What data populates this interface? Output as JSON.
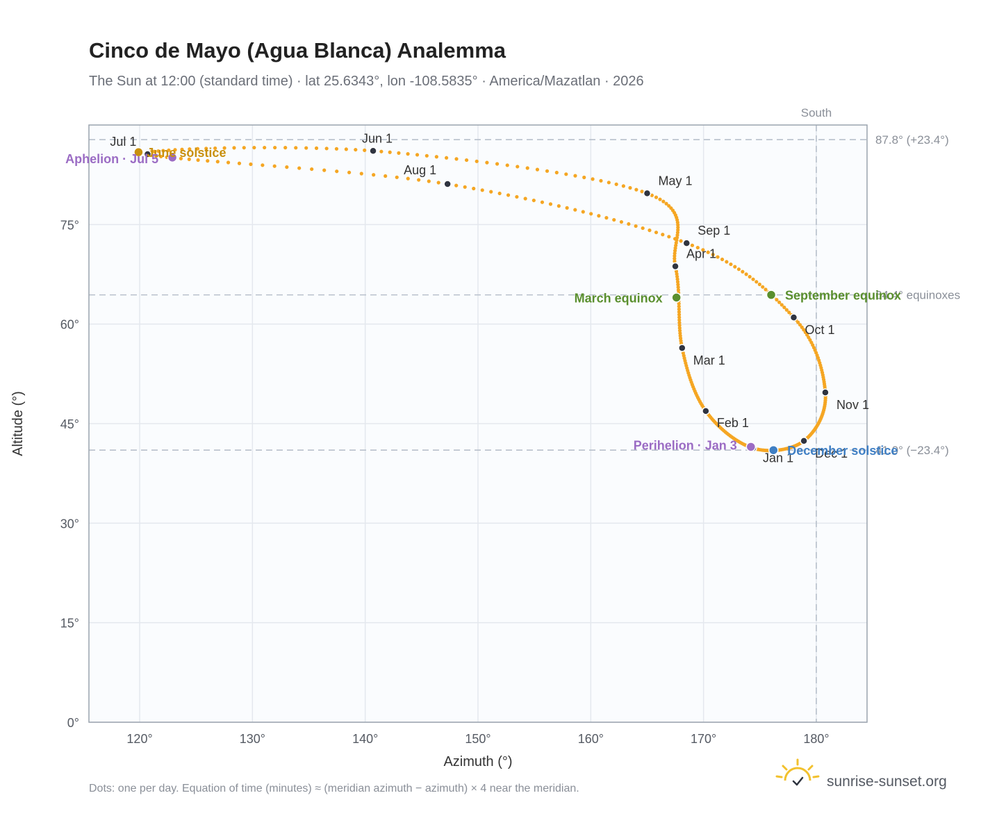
{
  "header": {
    "title": "Cinco de Mayo (Agua Blanca) Analemma",
    "subtitle": "The Sun at 12:00 (standard time) · lat 25.6343°, lon -108.5835° · America/Mazatlan · 2026"
  },
  "footer": {
    "note": "Dots: one per day. Equation of time (minutes) ≈ (meridian azimuth − azimuth) × 4 near the meridian.",
    "brand": "sunrise-sunset.org"
  },
  "colors": {
    "curve": "#f5a623",
    "month_point": "#2f3440",
    "june_solstice": "#c8900e",
    "december_solstice": "#3f7fc4",
    "equinox": "#5a8f2e",
    "apsis": "#9b6cc4",
    "grid": "#e4e8ee",
    "reference_line": "#b8c0cb",
    "frame": "#9aa3ad",
    "plot_bg": "#fafcfe"
  },
  "chart_data": {
    "type": "scatter",
    "title": "Cinco de Mayo (Agua Blanca) Analemma",
    "subtitle": "The Sun at 12:00 (standard time) · lat 25.6343°, lon -108.5835° · America/Mazatlan · 2026",
    "xlabel": "Azimuth (°)",
    "ylabel": "Altitude (°)",
    "xlim": [
      115.5,
      184.5
    ],
    "ylim": [
      0,
      90
    ],
    "x_ticks": [
      120,
      130,
      140,
      150,
      160,
      170,
      180
    ],
    "x_tick_labels": [
      "120°",
      "130°",
      "140°",
      "150°",
      "160°",
      "170°",
      "180°"
    ],
    "y_ticks": [
      0,
      15,
      30,
      45,
      60,
      75
    ],
    "y_tick_labels": [
      "0°",
      "15°",
      "30°",
      "45°",
      "60°",
      "75°"
    ],
    "grid": true,
    "series": [
      {
        "points_per": "day",
        "monthly_anchors": [
          {
            "label": "Jan 1",
            "azimuth": 174.4,
            "altitude": 41.3
          },
          {
            "label": "Feb 1",
            "azimuth": 170.2,
            "altitude": 46.9
          },
          {
            "label": "Mar 1",
            "azimuth": 168.1,
            "altitude": 56.4
          },
          {
            "label": "Apr 1",
            "azimuth": 167.5,
            "altitude": 68.7
          },
          {
            "label": "May 1",
            "azimuth": 165.0,
            "altitude": 79.7
          },
          {
            "label": "Jun 1",
            "azimuth": 140.7,
            "altitude": 86.1
          },
          {
            "label": "Jul 1",
            "azimuth": 120.7,
            "altitude": 85.6
          },
          {
            "label": "Aug 1",
            "azimuth": 147.3,
            "altitude": 81.1
          },
          {
            "label": "Sep 1",
            "azimuth": 168.5,
            "altitude": 72.2
          },
          {
            "label": "Oct 1",
            "azimuth": 178.0,
            "altitude": 61.0
          },
          {
            "label": "Nov 1",
            "azimuth": 180.8,
            "altitude": 49.7
          },
          {
            "label": "Dec 1",
            "azimuth": 178.9,
            "altitude": 42.4
          }
        ]
      }
    ],
    "events": [
      {
        "label": "June solstice",
        "azimuth": 119.9,
        "altitude": 85.9,
        "color_key": "june_solstice"
      },
      {
        "label": "Aphelion · Jul 5",
        "azimuth": 122.9,
        "altitude": 85.1,
        "color_key": "apsis"
      },
      {
        "label": "March equinox",
        "azimuth": 167.6,
        "altitude": 64.0,
        "color_key": "equinox"
      },
      {
        "label": "September equinox",
        "azimuth": 176.0,
        "altitude": 64.4,
        "color_key": "equinox"
      },
      {
        "label": "Perihelion · Jan 3",
        "azimuth": 174.2,
        "altitude": 41.5,
        "color_key": "apsis"
      },
      {
        "label": "December solstice",
        "azimuth": 176.2,
        "altitude": 41.0,
        "color_key": "december_solstice"
      }
    ],
    "reference_lines": [
      {
        "orientation": "horizontal",
        "value": 87.8,
        "label": "87.8° (+23.4°)"
      },
      {
        "orientation": "horizontal",
        "value": 64.4,
        "label": "64.4° equinoxes"
      },
      {
        "orientation": "horizontal",
        "value": 41.0,
        "label": "41.0° (−23.4°)"
      },
      {
        "orientation": "vertical",
        "value": 180,
        "label": "South"
      }
    ]
  }
}
